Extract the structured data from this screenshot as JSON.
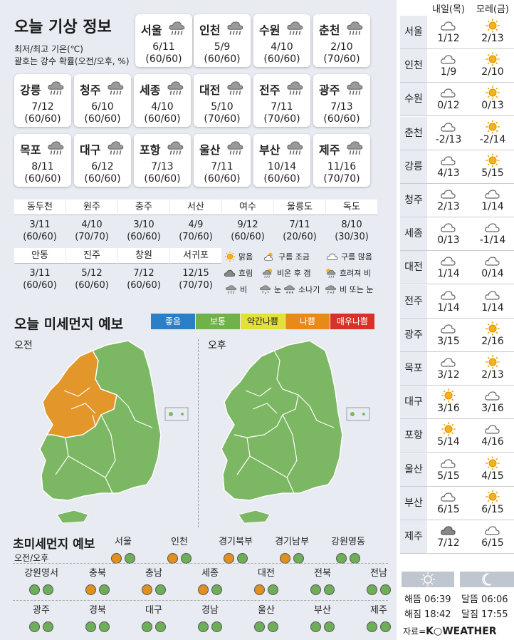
{
  "main": {
    "title": "오늘 기상 정보",
    "sub1": "최저/최고 기온(℃)",
    "sub2": "괄호는 강수 확률(오전/오후, %)"
  },
  "cities": [
    {
      "name": "서울",
      "temp": "6/11",
      "prob": "(60/60)",
      "icon": "rain-cloud-icon"
    },
    {
      "name": "인천",
      "temp": "5/9",
      "prob": "(60/60)",
      "icon": "rain-cloud-icon"
    },
    {
      "name": "수원",
      "temp": "4/10",
      "prob": "(60/60)",
      "icon": "rain-cloud-icon"
    },
    {
      "name": "춘천",
      "temp": "2/10",
      "prob": "(70/60)",
      "icon": "rain-cloud-icon"
    },
    {
      "name": "강릉",
      "temp": "7/12",
      "prob": "(60/60)",
      "icon": "rain-cloud-icon"
    },
    {
      "name": "청주",
      "temp": "6/10",
      "prob": "(60/60)",
      "icon": "rain-cloud-icon"
    },
    {
      "name": "세종",
      "temp": "4/10",
      "prob": "(60/60)",
      "icon": "rain-cloud-icon"
    },
    {
      "name": "대전",
      "temp": "5/10",
      "prob": "(70/60)",
      "icon": "rain-cloud-icon"
    },
    {
      "name": "전주",
      "temp": "7/11",
      "prob": "(70/60)",
      "icon": "rain-cloud-icon"
    },
    {
      "name": "광주",
      "temp": "7/13",
      "prob": "(60/60)",
      "icon": "rain-cloud-icon"
    },
    {
      "name": "목포",
      "temp": "8/11",
      "prob": "(60/60)",
      "icon": "rain-cloud-icon"
    },
    {
      "name": "대구",
      "temp": "6/12",
      "prob": "(60/60)",
      "icon": "rain-cloud-icon"
    },
    {
      "name": "포항",
      "temp": "7/13",
      "prob": "(60/60)",
      "icon": "rain-cloud-icon"
    },
    {
      "name": "울산",
      "temp": "7/11",
      "prob": "(60/60)",
      "icon": "rain-cloud-icon"
    },
    {
      "name": "부산",
      "temp": "10/14",
      "prob": "(60/60)",
      "icon": "rain-cloud-icon"
    },
    {
      "name": "제주",
      "temp": "11/16",
      "prob": "(70/70)",
      "icon": "rain-cloud-icon"
    }
  ],
  "small": [
    {
      "name": "동두천",
      "temp": "3/11",
      "prob": "(60/60)"
    },
    {
      "name": "원주",
      "temp": "4/10",
      "prob": "(70/70)"
    },
    {
      "name": "충주",
      "temp": "3/10",
      "prob": "(60/60)"
    },
    {
      "name": "서산",
      "temp": "4/9",
      "prob": "(70/60)"
    },
    {
      "name": "여수",
      "temp": "9/12",
      "prob": "(60/60)"
    },
    {
      "name": "울릉도",
      "temp": "7/11",
      "prob": "(20/60)"
    },
    {
      "name": "독도",
      "temp": "8/10",
      "prob": "(30/30)"
    },
    {
      "name": "안동",
      "temp": "3/11",
      "prob": "(60/60)"
    },
    {
      "name": "진주",
      "temp": "5/12",
      "prob": "(60/60)"
    },
    {
      "name": "창원",
      "temp": "7/12",
      "prob": "(60/60)"
    },
    {
      "name": "서귀포",
      "temp": "12/15",
      "prob": "(70/70)"
    }
  ],
  "legend": [
    {
      "label": "맑음",
      "icon": "sun-icon"
    },
    {
      "label": "구름 조금",
      "icon": "partly-cloudy-icon"
    },
    {
      "label": "구름 많음",
      "icon": "cloud-icon"
    },
    {
      "label": "흐림",
      "icon": "overcast-icon"
    },
    {
      "label": "비온 후 갬",
      "icon": "rain-then-clear-icon"
    },
    {
      "label": "흐려져 비",
      "icon": "clouding-rain-icon"
    },
    {
      "label": "비",
      "icon": "rain-icon"
    },
    {
      "label": "눈",
      "icon": "snow-icon"
    },
    {
      "label": "소나기",
      "icon": "shower-icon"
    },
    {
      "label": "비 또는 눈",
      "icon": "rain-or-snow-icon"
    }
  ],
  "dust": {
    "title": "오늘 미세먼지 예보",
    "am": "오전",
    "pm": "오후",
    "scale": [
      {
        "label": "좋음",
        "color": "#2a7fc7"
      },
      {
        "label": "보통",
        "color": "#6fb24a"
      },
      {
        "label": "약간나쁨",
        "color": "#e3e03a"
      },
      {
        "label": "나쁨",
        "color": "#e88a1a"
      },
      {
        "label": "매우나쁨",
        "color": "#d8312a"
      }
    ]
  },
  "colors": {
    "good": "#6fae58",
    "bad": "#e0901f",
    "map_green": "#7cb763",
    "map_orange": "#e3962a"
  },
  "fine": {
    "title": "초미세먼지 예보",
    "sub": "오전/오후",
    "items": [
      {
        "name": "서울",
        "am": "bad",
        "pm": "good"
      },
      {
        "name": "인천",
        "am": "bad",
        "pm": "good"
      },
      {
        "name": "경기북부",
        "am": "bad",
        "pm": "good"
      },
      {
        "name": "경기남부",
        "am": "bad",
        "pm": "good"
      },
      {
        "name": "강원영동",
        "am": "good",
        "pm": "good"
      },
      {
        "name": "강원영서",
        "am": "good",
        "pm": "good"
      },
      {
        "name": "충북",
        "am": "bad",
        "pm": "good"
      },
      {
        "name": "충남",
        "am": "bad",
        "pm": "good"
      },
      {
        "name": "세종",
        "am": "bad",
        "pm": "good"
      },
      {
        "name": "대전",
        "am": "bad",
        "pm": "good"
      },
      {
        "name": "전북",
        "am": "good",
        "pm": "good"
      },
      {
        "name": "전남",
        "am": "good",
        "pm": "good"
      },
      {
        "name": "광주",
        "am": "good",
        "pm": "good"
      },
      {
        "name": "경북",
        "am": "good",
        "pm": "good"
      },
      {
        "name": "대구",
        "am": "good",
        "pm": "good"
      },
      {
        "name": "경남",
        "am": "good",
        "pm": "good"
      },
      {
        "name": "울산",
        "am": "good",
        "pm": "good"
      },
      {
        "name": "부산",
        "am": "good",
        "pm": "good"
      },
      {
        "name": "제주",
        "am": "good",
        "pm": "good"
      }
    ]
  },
  "forecast": {
    "col1": "내일(목)",
    "col2": "모레(금)",
    "rows": [
      {
        "city": "서울",
        "d1": {
          "icon": "cloud-icon",
          "t": "1/12"
        },
        "d2": {
          "icon": "sun-icon",
          "t": "2/13"
        }
      },
      {
        "city": "인천",
        "d1": {
          "icon": "cloud-icon",
          "t": "1/9"
        },
        "d2": {
          "icon": "sun-icon",
          "t": "2/10"
        }
      },
      {
        "city": "수원",
        "d1": {
          "icon": "cloud-icon",
          "t": "0/12"
        },
        "d2": {
          "icon": "sun-icon",
          "t": "0/13"
        }
      },
      {
        "city": "춘천",
        "d1": {
          "icon": "cloud-icon",
          "t": "-2/13"
        },
        "d2": {
          "icon": "sun-icon",
          "t": "-2/14"
        }
      },
      {
        "city": "강릉",
        "d1": {
          "icon": "cloud-icon",
          "t": "4/13"
        },
        "d2": {
          "icon": "sun-icon",
          "t": "5/15"
        }
      },
      {
        "city": "청주",
        "d1": {
          "icon": "cloud-icon",
          "t": "2/13"
        },
        "d2": {
          "icon": "cloud-icon",
          "t": "1/14"
        }
      },
      {
        "city": "세종",
        "d1": {
          "icon": "cloud-icon",
          "t": "0/13"
        },
        "d2": {
          "icon": "cloud-icon",
          "t": "-1/14"
        }
      },
      {
        "city": "대전",
        "d1": {
          "icon": "cloud-icon",
          "t": "1/14"
        },
        "d2": {
          "icon": "cloud-icon",
          "t": "0/14"
        }
      },
      {
        "city": "전주",
        "d1": {
          "icon": "cloud-icon",
          "t": "1/14"
        },
        "d2": {
          "icon": "cloud-icon",
          "t": "1/14"
        }
      },
      {
        "city": "광주",
        "d1": {
          "icon": "cloud-icon",
          "t": "3/15"
        },
        "d2": {
          "icon": "sun-icon",
          "t": "2/16"
        }
      },
      {
        "city": "목포",
        "d1": {
          "icon": "cloud-icon",
          "t": "3/12"
        },
        "d2": {
          "icon": "sun-icon",
          "t": "2/13"
        }
      },
      {
        "city": "대구",
        "d1": {
          "icon": "sun-icon",
          "t": "3/16"
        },
        "d2": {
          "icon": "cloud-icon",
          "t": "3/16"
        }
      },
      {
        "city": "포항",
        "d1": {
          "icon": "sun-icon",
          "t": "5/14"
        },
        "d2": {
          "icon": "cloud-icon",
          "t": "4/16"
        }
      },
      {
        "city": "울산",
        "d1": {
          "icon": "cloud-icon",
          "t": "5/15"
        },
        "d2": {
          "icon": "sun-icon",
          "t": "4/15"
        }
      },
      {
        "city": "부산",
        "d1": {
          "icon": "cloud-icon",
          "t": "6/15"
        },
        "d2": {
          "icon": "sun-icon",
          "t": "6/15"
        }
      },
      {
        "city": "제주",
        "d1": {
          "icon": "overcast-icon",
          "t": "7/12"
        },
        "d2": {
          "icon": "cloud-icon",
          "t": "6/15"
        }
      }
    ]
  },
  "sunmoon": {
    "sunrise": "해뜸 06:39",
    "sunset": "해짐 18:42",
    "moonrise": "달뜸 06:06",
    "moonset": "달짐 17:55"
  },
  "source": {
    "prefix": "자료=",
    "brand": "K○WEATHER"
  }
}
